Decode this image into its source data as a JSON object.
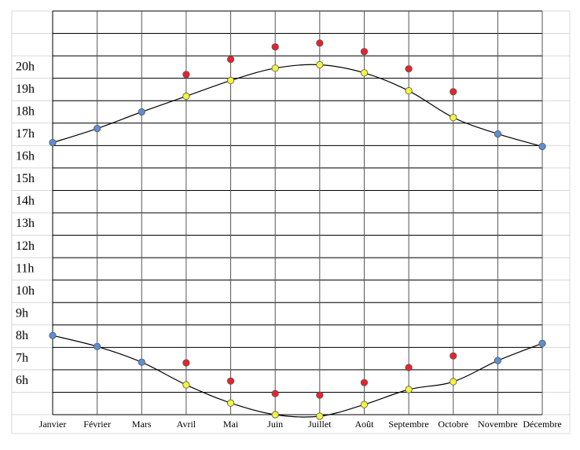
{
  "chart_data": {
    "type": "scatter",
    "categories": [
      "Janvier",
      "Février",
      "Mars",
      "Avril",
      "Mai",
      "Juin",
      "Juillet",
      "Août",
      "Septembre",
      "Octobre",
      "Novembre",
      "Décembre"
    ],
    "ylim": [
      5,
      23
    ],
    "yticks": [
      {
        "value": 5,
        "label": null
      },
      {
        "value": 6,
        "label": "6h"
      },
      {
        "value": 7,
        "label": "7h"
      },
      {
        "value": 8,
        "label": "8h"
      },
      {
        "value": 9,
        "label": "9h"
      },
      {
        "value": 10,
        "label": "10h"
      },
      {
        "value": 11,
        "label": "11h"
      },
      {
        "value": 12,
        "label": "12h"
      },
      {
        "value": 13,
        "label": "13h"
      },
      {
        "value": 14,
        "label": "14h"
      },
      {
        "value": 15,
        "label": "15h"
      },
      {
        "value": 16,
        "label": "16h"
      },
      {
        "value": 17,
        "label": "17h"
      },
      {
        "value": 18,
        "label": "18h"
      },
      {
        "value": 19,
        "label": "19h"
      },
      {
        "value": 20,
        "label": "20h"
      },
      {
        "value": 21,
        "label": null
      },
      {
        "value": 22,
        "label": null
      },
      {
        "value": 23,
        "label": null
      }
    ],
    "grid": true,
    "series": [
      {
        "color": "#5b8fd6",
        "values": [
          17.13,
          17.76,
          18.5,
          null,
          null,
          null,
          null,
          null,
          null,
          null,
          17.52,
          16.96
        ]
      },
      {
        "color": "#f5f53a",
        "values": [
          null,
          null,
          null,
          19.2,
          19.9,
          20.45,
          20.6,
          20.24,
          19.44,
          18.25,
          null,
          null
        ]
      },
      {
        "color": "#e8232d",
        "values": [
          null,
          null,
          null,
          20.17,
          20.84,
          21.4,
          21.57,
          21.19,
          20.42,
          19.4,
          null,
          null
        ]
      },
      {
        "color": "#5b8fd6",
        "values": [
          8.53,
          8.04,
          7.34,
          null,
          null,
          null,
          null,
          null,
          null,
          null,
          7.41,
          8.18
        ]
      },
      {
        "color": "#f5f53a",
        "values": [
          null,
          null,
          null,
          6.33,
          5.52,
          5.0,
          4.93,
          5.45,
          6.12,
          6.47,
          null,
          null
        ]
      },
      {
        "color": "#e8232d",
        "values": [
          null,
          null,
          null,
          7.31,
          6.5,
          5.94,
          5.87,
          6.43,
          7.1,
          7.62,
          null,
          null
        ]
      }
    ]
  }
}
